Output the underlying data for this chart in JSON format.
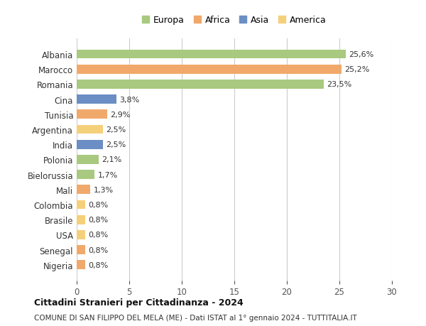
{
  "countries": [
    "Albania",
    "Marocco",
    "Romania",
    "Cina",
    "Tunisia",
    "Argentina",
    "India",
    "Polonia",
    "Bielorussia",
    "Mali",
    "Colombia",
    "Brasile",
    "USA",
    "Senegal",
    "Nigeria"
  ],
  "values": [
    25.6,
    25.2,
    23.5,
    3.8,
    2.9,
    2.5,
    2.5,
    2.1,
    1.7,
    1.3,
    0.8,
    0.8,
    0.8,
    0.8,
    0.8
  ],
  "labels": [
    "25,6%",
    "25,2%",
    "23,5%",
    "3,8%",
    "2,9%",
    "2,5%",
    "2,5%",
    "2,1%",
    "1,7%",
    "1,3%",
    "0,8%",
    "0,8%",
    "0,8%",
    "0,8%",
    "0,8%"
  ],
  "continents": [
    "Europa",
    "Africa",
    "Europa",
    "Asia",
    "Africa",
    "America",
    "Asia",
    "Europa",
    "Europa",
    "Africa",
    "America",
    "America",
    "America",
    "Africa",
    "Africa"
  ],
  "colors": {
    "Europa": "#a8c97f",
    "Africa": "#f0a96a",
    "Asia": "#6b8ec4",
    "America": "#f5d07a"
  },
  "legend_order": [
    "Europa",
    "Africa",
    "Asia",
    "America"
  ],
  "title": "Cittadini Stranieri per Cittadinanza - 2024",
  "subtitle": "COMUNE DI SAN FILIPPO DEL MELA (ME) - Dati ISTAT al 1° gennaio 2024 - TUTTITALIA.IT",
  "xlim": [
    0,
    30
  ],
  "xticks": [
    0,
    5,
    10,
    15,
    20,
    25,
    30
  ],
  "bg_color": "#ffffff",
  "grid_color": "#cccccc"
}
